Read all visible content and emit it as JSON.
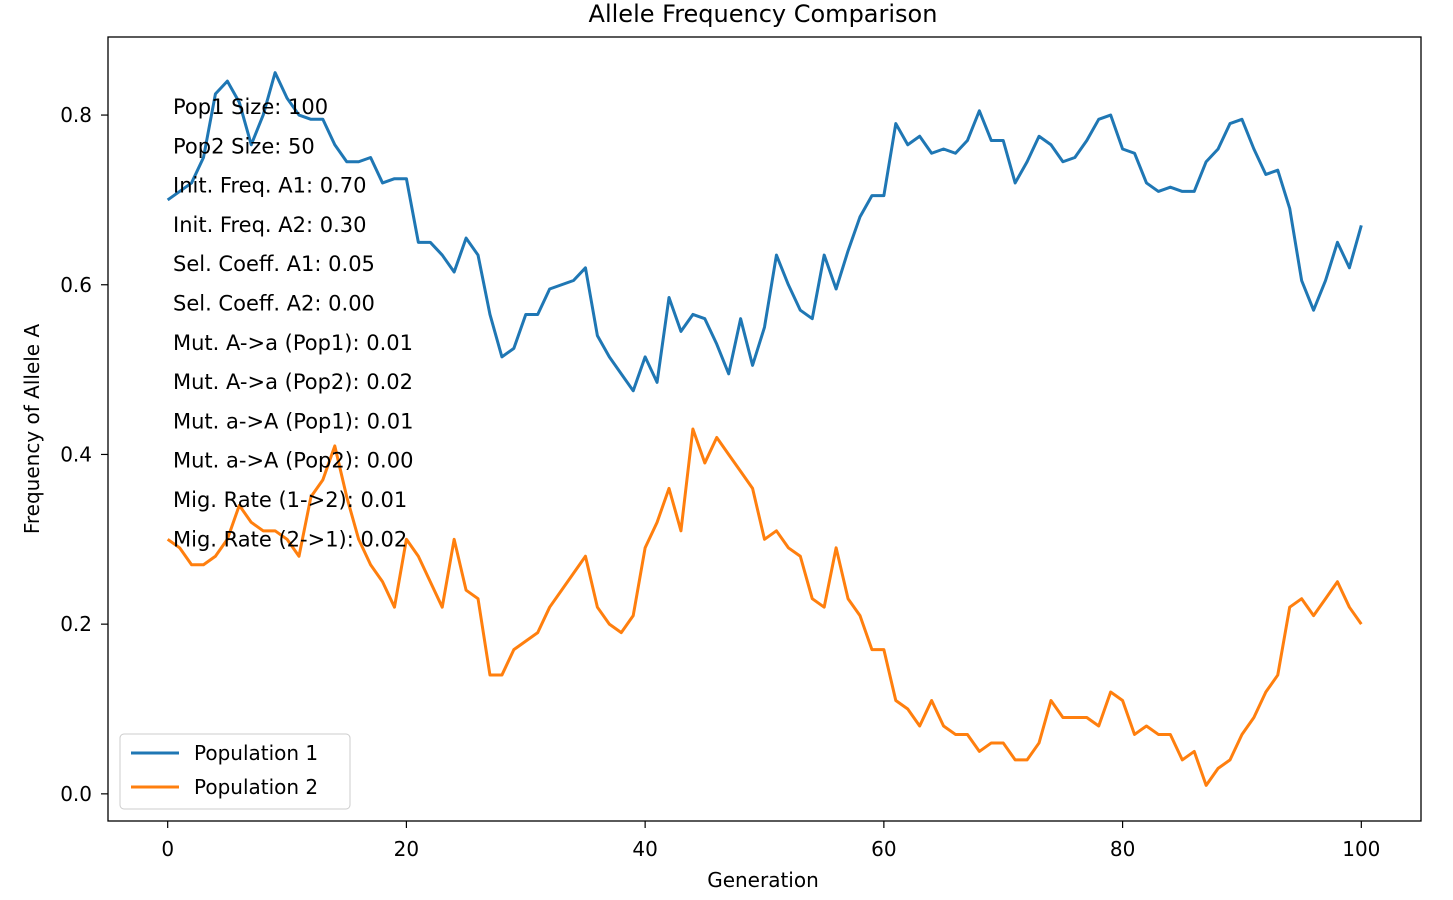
{
  "chart_data": {
    "type": "line",
    "title": "Allele Frequency Comparison",
    "xlabel": "Generation",
    "ylabel": "Frequency of Allele A",
    "xlim": [
      -5,
      105
    ],
    "ylim": [
      -0.032,
      0.892
    ],
    "xticks": [
      0,
      20,
      40,
      60,
      80,
      100
    ],
    "yticks": [
      0.0,
      0.2,
      0.4,
      0.6,
      0.8
    ],
    "xtick_labels": [
      "0",
      "20",
      "40",
      "60",
      "80",
      "100"
    ],
    "ytick_labels": [
      "0.0",
      "0.2",
      "0.4",
      "0.6",
      "0.8"
    ],
    "grid": false,
    "legend_position": "lower-left",
    "x": [
      0,
      1,
      2,
      3,
      4,
      5,
      6,
      7,
      8,
      9,
      10,
      11,
      12,
      13,
      14,
      15,
      16,
      17,
      18,
      19,
      20,
      21,
      22,
      23,
      24,
      25,
      26,
      27,
      28,
      29,
      30,
      31,
      32,
      33,
      34,
      35,
      36,
      37,
      38,
      39,
      40,
      41,
      42,
      43,
      44,
      45,
      46,
      47,
      48,
      49,
      50,
      51,
      52,
      53,
      54,
      55,
      56,
      57,
      58,
      59,
      60,
      61,
      62,
      63,
      64,
      65,
      66,
      67,
      68,
      69,
      70,
      71,
      72,
      73,
      74,
      75,
      76,
      77,
      78,
      79,
      80,
      81,
      82,
      83,
      84,
      85,
      86,
      87,
      88,
      89,
      90,
      91,
      92,
      93,
      94,
      95,
      96,
      97,
      98,
      99,
      100
    ],
    "series": [
      {
        "name": "Population 1",
        "color": "#1f77b4",
        "values": [
          0.7,
          0.71,
          0.72,
          0.75,
          0.825,
          0.84,
          0.815,
          0.765,
          0.8,
          0.85,
          0.82,
          0.8,
          0.795,
          0.795,
          0.765,
          0.745,
          0.745,
          0.75,
          0.72,
          0.725,
          0.725,
          0.65,
          0.65,
          0.635,
          0.615,
          0.655,
          0.635,
          0.565,
          0.515,
          0.525,
          0.565,
          0.565,
          0.595,
          0.6,
          0.605,
          0.62,
          0.54,
          0.515,
          0.495,
          0.475,
          0.515,
          0.485,
          0.585,
          0.545,
          0.565,
          0.56,
          0.53,
          0.495,
          0.56,
          0.505,
          0.55,
          0.635,
          0.6,
          0.57,
          0.56,
          0.635,
          0.595,
          0.64,
          0.68,
          0.705,
          0.705,
          0.79,
          0.765,
          0.775,
          0.755,
          0.76,
          0.755,
          0.77,
          0.805,
          0.77,
          0.77,
          0.72,
          0.745,
          0.775,
          0.765,
          0.745,
          0.75,
          0.77,
          0.795,
          0.8,
          0.76,
          0.755,
          0.72,
          0.71,
          0.715,
          0.71,
          0.71,
          0.745,
          0.76,
          0.79,
          0.795,
          0.76,
          0.73,
          0.735,
          0.69,
          0.605,
          0.57,
          0.605,
          0.65,
          0.62,
          0.67
        ]
      },
      {
        "name": "Population 2",
        "color": "#ff7f0e",
        "values": [
          0.3,
          0.29,
          0.27,
          0.27,
          0.28,
          0.3,
          0.34,
          0.32,
          0.31,
          0.31,
          0.3,
          0.28,
          0.35,
          0.37,
          0.41,
          0.35,
          0.3,
          0.27,
          0.25,
          0.22,
          0.3,
          0.28,
          0.25,
          0.22,
          0.3,
          0.24,
          0.23,
          0.14,
          0.14,
          0.17,
          0.18,
          0.19,
          0.22,
          0.24,
          0.26,
          0.28,
          0.22,
          0.2,
          0.19,
          0.21,
          0.29,
          0.32,
          0.36,
          0.31,
          0.43,
          0.39,
          0.42,
          0.4,
          0.38,
          0.36,
          0.3,
          0.31,
          0.29,
          0.28,
          0.23,
          0.22,
          0.29,
          0.23,
          0.21,
          0.17,
          0.17,
          0.11,
          0.1,
          0.08,
          0.11,
          0.08,
          0.07,
          0.07,
          0.05,
          0.06,
          0.06,
          0.04,
          0.04,
          0.06,
          0.11,
          0.09,
          0.09,
          0.09,
          0.08,
          0.12,
          0.11,
          0.07,
          0.08,
          0.07,
          0.07,
          0.04,
          0.05,
          0.01,
          0.03,
          0.04,
          0.07,
          0.09,
          0.12,
          0.14,
          0.22,
          0.23,
          0.21,
          0.23,
          0.25,
          0.22,
          0.2
        ]
      }
    ],
    "annotations": [
      "Pop1 Size: 100",
      "Pop2 Size: 50",
      "Init. Freq. A1: 0.70",
      "Init. Freq. A2: 0.30",
      "Sel. Coeff. A1: 0.05",
      "Sel. Coeff. A2: 0.00",
      "Mut. A->a (Pop1): 0.01",
      "Mut. A->a (Pop2): 0.02",
      "Mut. a->A (Pop1): 0.01",
      "Mut. a->A (Pop2): 0.00",
      "Mig. Rate (1->2): 0.01",
      "Mig. Rate (2->1): 0.02"
    ]
  }
}
